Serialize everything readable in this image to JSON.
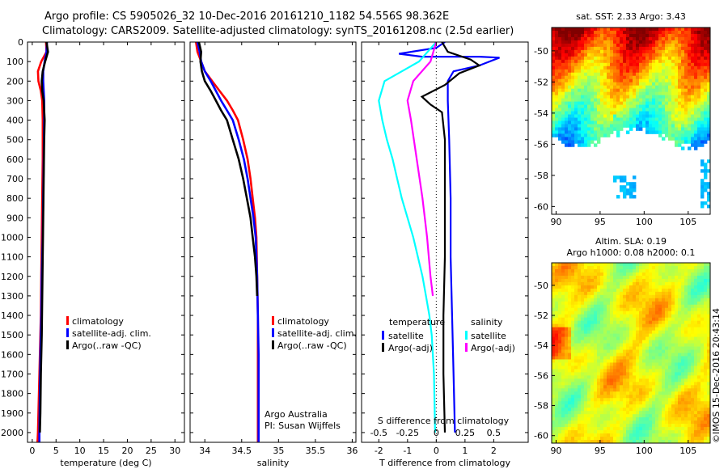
{
  "header": {
    "title_line1": "Argo profile: CS 5905026_32 10-Dec-2016 20161210_1182 54.556S 98.362E",
    "title_line2": "Climatology: CARS2009. Satellite-adjusted climatology: synTS_20161208.nc (2.5d earlier)"
  },
  "colors": {
    "climatology": "#ff0000",
    "satellite_adj": "#0000ff",
    "argo": "#000000",
    "salinity_satellite": "#00ffff",
    "salinity_argo_adj": "#ff00ff"
  },
  "chart_data": [
    {
      "type": "line",
      "panel": "temperature",
      "xlabel": "temperature (deg C)",
      "xlim": [
        -1,
        32
      ],
      "xticks": [
        0,
        5,
        10,
        15,
        20,
        25,
        30
      ],
      "ylim": [
        2050,
        0
      ],
      "yticks": [
        0,
        100,
        200,
        300,
        400,
        500,
        600,
        700,
        800,
        900,
        1000,
        1100,
        1200,
        1300,
        1400,
        1500,
        1600,
        1700,
        1800,
        1900,
        2000
      ],
      "y_reversed": true,
      "legend": [
        "climatology",
        "satellite-adj. clim.",
        "Argo(..raw -QC)"
      ],
      "series": [
        {
          "name": "climatology",
          "color": "#ff0000",
          "points": [
            [
              2.9,
              0
            ],
            [
              3.0,
              50
            ],
            [
              1.9,
              100
            ],
            [
              1.2,
              150
            ],
            [
              1.3,
              200
            ],
            [
              1.8,
              250
            ],
            [
              2.1,
              300
            ],
            [
              2.2,
              400
            ],
            [
              2.2,
              500
            ],
            [
              2.2,
              600
            ],
            [
              2.1,
              800
            ],
            [
              2.0,
              1000
            ],
            [
              1.9,
              1200
            ],
            [
              1.8,
              1400
            ],
            [
              1.6,
              1600
            ],
            [
              1.4,
              1800
            ],
            [
              1.2,
              2000
            ],
            [
              1.1,
              2050
            ]
          ]
        },
        {
          "name": "satellite-adj. clim.",
          "color": "#0000ff",
          "points": [
            [
              3.1,
              0
            ],
            [
              3.0,
              50
            ],
            [
              2.6,
              100
            ],
            [
              2.3,
              150
            ],
            [
              2.3,
              200
            ],
            [
              2.4,
              250
            ],
            [
              2.5,
              300
            ],
            [
              2.5,
              400
            ],
            [
              2.4,
              600
            ],
            [
              2.3,
              800
            ],
            [
              2.2,
              1000
            ],
            [
              2.0,
              1200
            ],
            [
              1.9,
              1400
            ],
            [
              1.7,
              1600
            ],
            [
              1.6,
              1800
            ],
            [
              1.5,
              2000
            ],
            [
              1.5,
              2050
            ]
          ]
        },
        {
          "name": "Argo(..raw -QC)",
          "color": "#000000",
          "points": [
            [
              3.0,
              0
            ],
            [
              3.3,
              50
            ],
            [
              2.7,
              100
            ],
            [
              2.2,
              150
            ],
            [
              2.0,
              200
            ],
            [
              2.1,
              250
            ],
            [
              2.4,
              300
            ],
            [
              2.5,
              350
            ],
            [
              2.6,
              400
            ],
            [
              2.5,
              500
            ],
            [
              2.4,
              700
            ],
            [
              2.3,
              900
            ],
            [
              2.2,
              1100
            ],
            [
              2.1,
              1300
            ],
            [
              2.0,
              1500
            ],
            [
              1.8,
              1700
            ],
            [
              1.7,
              1900
            ],
            [
              1.6,
              2000
            ]
          ]
        }
      ]
    },
    {
      "type": "line",
      "panel": "salinity",
      "xlabel": "salinity",
      "xlim": [
        33.8,
        36.05
      ],
      "xticks": [
        34,
        34.5,
        35,
        35.5,
        36
      ],
      "ylim": [
        2050,
        0
      ],
      "y_reversed": true,
      "legend": [
        "climatology",
        "satellite-adj. clim.",
        "Argo(..raw -QC)"
      ],
      "annotation_lines": [
        "Argo Australia",
        "PI: Susan Wijffels"
      ],
      "series": [
        {
          "name": "climatology",
          "color": "#ff0000",
          "points": [
            [
              33.88,
              0
            ],
            [
              33.9,
              50
            ],
            [
              33.95,
              100
            ],
            [
              34.0,
              150
            ],
            [
              34.1,
              200
            ],
            [
              34.2,
              250
            ],
            [
              34.3,
              300
            ],
            [
              34.38,
              350
            ],
            [
              34.45,
              400
            ],
            [
              34.52,
              500
            ],
            [
              34.58,
              600
            ],
            [
              34.62,
              700
            ],
            [
              34.65,
              800
            ],
            [
              34.68,
              900
            ],
            [
              34.7,
              1000
            ],
            [
              34.71,
              1200
            ],
            [
              34.72,
              1400
            ],
            [
              34.72,
              1600
            ],
            [
              34.72,
              1800
            ],
            [
              34.72,
              2050
            ]
          ]
        },
        {
          "name": "satellite-adj. clim.",
          "color": "#0000ff",
          "points": [
            [
              33.9,
              0
            ],
            [
              33.93,
              50
            ],
            [
              33.95,
              100
            ],
            [
              34.0,
              150
            ],
            [
              34.08,
              200
            ],
            [
              34.15,
              250
            ],
            [
              34.22,
              300
            ],
            [
              34.3,
              350
            ],
            [
              34.38,
              400
            ],
            [
              34.46,
              500
            ],
            [
              34.53,
              600
            ],
            [
              34.58,
              700
            ],
            [
              34.62,
              800
            ],
            [
              34.66,
              900
            ],
            [
              34.69,
              1000
            ],
            [
              34.71,
              1200
            ],
            [
              34.72,
              1400
            ],
            [
              34.73,
              1600
            ],
            [
              34.73,
              1800
            ],
            [
              34.73,
              2050
            ]
          ]
        },
        {
          "name": "Argo(..raw -QC)",
          "color": "#000000",
          "points": [
            [
              33.92,
              0
            ],
            [
              33.95,
              50
            ],
            [
              33.94,
              100
            ],
            [
              33.96,
              150
            ],
            [
              34.0,
              200
            ],
            [
              34.08,
              250
            ],
            [
              34.15,
              300
            ],
            [
              34.22,
              350
            ],
            [
              34.3,
              400
            ],
            [
              34.38,
              500
            ],
            [
              34.46,
              600
            ],
            [
              34.52,
              700
            ],
            [
              34.57,
              800
            ],
            [
              34.62,
              900
            ],
            [
              34.65,
              1000
            ],
            [
              34.68,
              1100
            ],
            [
              34.7,
              1200
            ],
            [
              34.71,
              1300
            ]
          ]
        }
      ]
    },
    {
      "type": "line",
      "panel": "difference",
      "xlabel": "T difference from climatology",
      "xlim": [
        -2.6,
        3.2
      ],
      "xticks": [
        -2,
        -1,
        0,
        1,
        2
      ],
      "top_axis_title": "S difference from climatology",
      "top_axis_ticks": [
        "-0.5",
        "-0.25",
        "0",
        "0.25",
        "0.5"
      ],
      "top_axis_values": [
        -0.5,
        -0.25,
        0,
        0.25,
        0.5
      ],
      "ylim": [
        2050,
        0
      ],
      "y_reversed": true,
      "legend_left_title": "temperature",
      "legend_right_title": "salinity",
      "legend_left": [
        "satellite",
        "Argo(-adj)"
      ],
      "legend_right": [
        "satellite",
        "Argo(-adj)"
      ],
      "series": [
        {
          "name": "temperature satellite",
          "color": "#0000ff",
          "points": [
            [
              0.3,
              0
            ],
            [
              0.0,
              30
            ],
            [
              -1.3,
              60
            ],
            [
              -0.5,
              75
            ],
            [
              1.5,
              75
            ],
            [
              2.2,
              80
            ],
            [
              1.5,
              120
            ],
            [
              0.6,
              150
            ],
            [
              0.4,
              200
            ],
            [
              0.4,
              300
            ],
            [
              0.45,
              500
            ],
            [
              0.5,
              800
            ],
            [
              0.5,
              1100
            ],
            [
              0.55,
              1400
            ],
            [
              0.6,
              1700
            ],
            [
              0.65,
              2000
            ]
          ]
        },
        {
          "name": "temperature Argo(-adj)",
          "color": "#000000",
          "points": [
            [
              0.2,
              0
            ],
            [
              0.4,
              50
            ],
            [
              1.2,
              90
            ],
            [
              1.5,
              120
            ],
            [
              0.8,
              160
            ],
            [
              0.3,
              220
            ],
            [
              -0.5,
              280
            ],
            [
              -0.2,
              320
            ],
            [
              0.2,
              360
            ],
            [
              0.3,
              500
            ],
            [
              0.3,
              800
            ],
            [
              0.3,
              1100
            ],
            [
              0.25,
              1400
            ],
            [
              0.25,
              1700
            ],
            [
              0.3,
              2000
            ]
          ]
        },
        {
          "name": "salinity satellite",
          "color": "#00ffff",
          "points": [
            [
              0.0,
              0
            ],
            [
              -0.15,
              100
            ],
            [
              -0.45,
              200
            ],
            [
              -0.5,
              300
            ],
            [
              -0.47,
              400
            ],
            [
              -0.43,
              500
            ],
            [
              -0.38,
              600
            ],
            [
              -0.34,
              700
            ],
            [
              -0.3,
              800
            ],
            [
              -0.25,
              900
            ],
            [
              -0.2,
              1000
            ],
            [
              -0.16,
              1100
            ],
            [
              -0.12,
              1200
            ],
            [
              -0.09,
              1300
            ],
            [
              -0.06,
              1400
            ],
            [
              -0.04,
              1500
            ],
            [
              -0.02,
              1700
            ],
            [
              -0.01,
              2000
            ]
          ]
        },
        {
          "name": "salinity Argo(-adj)",
          "color": "#ff00ff",
          "points": [
            [
              0.0,
              0
            ],
            [
              -0.05,
              100
            ],
            [
              -0.2,
              200
            ],
            [
              -0.25,
              300
            ],
            [
              -0.22,
              400
            ],
            [
              -0.17,
              600
            ],
            [
              -0.12,
              800
            ],
            [
              -0.08,
              1000
            ],
            [
              -0.05,
              1200
            ],
            [
              -0.03,
              1300
            ]
          ]
        }
      ]
    },
    {
      "type": "heatmap",
      "panel": "sst_map",
      "title": "sat. SST: 2.33 Argo: 3.43",
      "xticks": [
        90,
        95,
        100,
        105
      ],
      "yticks": [
        -50,
        -52,
        -54,
        -56,
        -58,
        -60
      ],
      "xlim": [
        89.5,
        107.5
      ],
      "ylim": [
        -60.5,
        -48.5
      ]
    },
    {
      "type": "heatmap",
      "panel": "sla_map",
      "title_line1": "Altim. SLA: 0.19",
      "title_line2": "Argo h1000: 0.08 h2000: 0.1",
      "xticks": [
        90,
        95,
        100,
        105
      ],
      "yticks": [
        -50,
        -52,
        -54,
        -56,
        -58,
        -60
      ],
      "xlim": [
        89.5,
        107.5
      ],
      "ylim": [
        -60.5,
        -48.5
      ]
    }
  ],
  "credit": "©IMOS 15-Dec-2016 20:43:14"
}
